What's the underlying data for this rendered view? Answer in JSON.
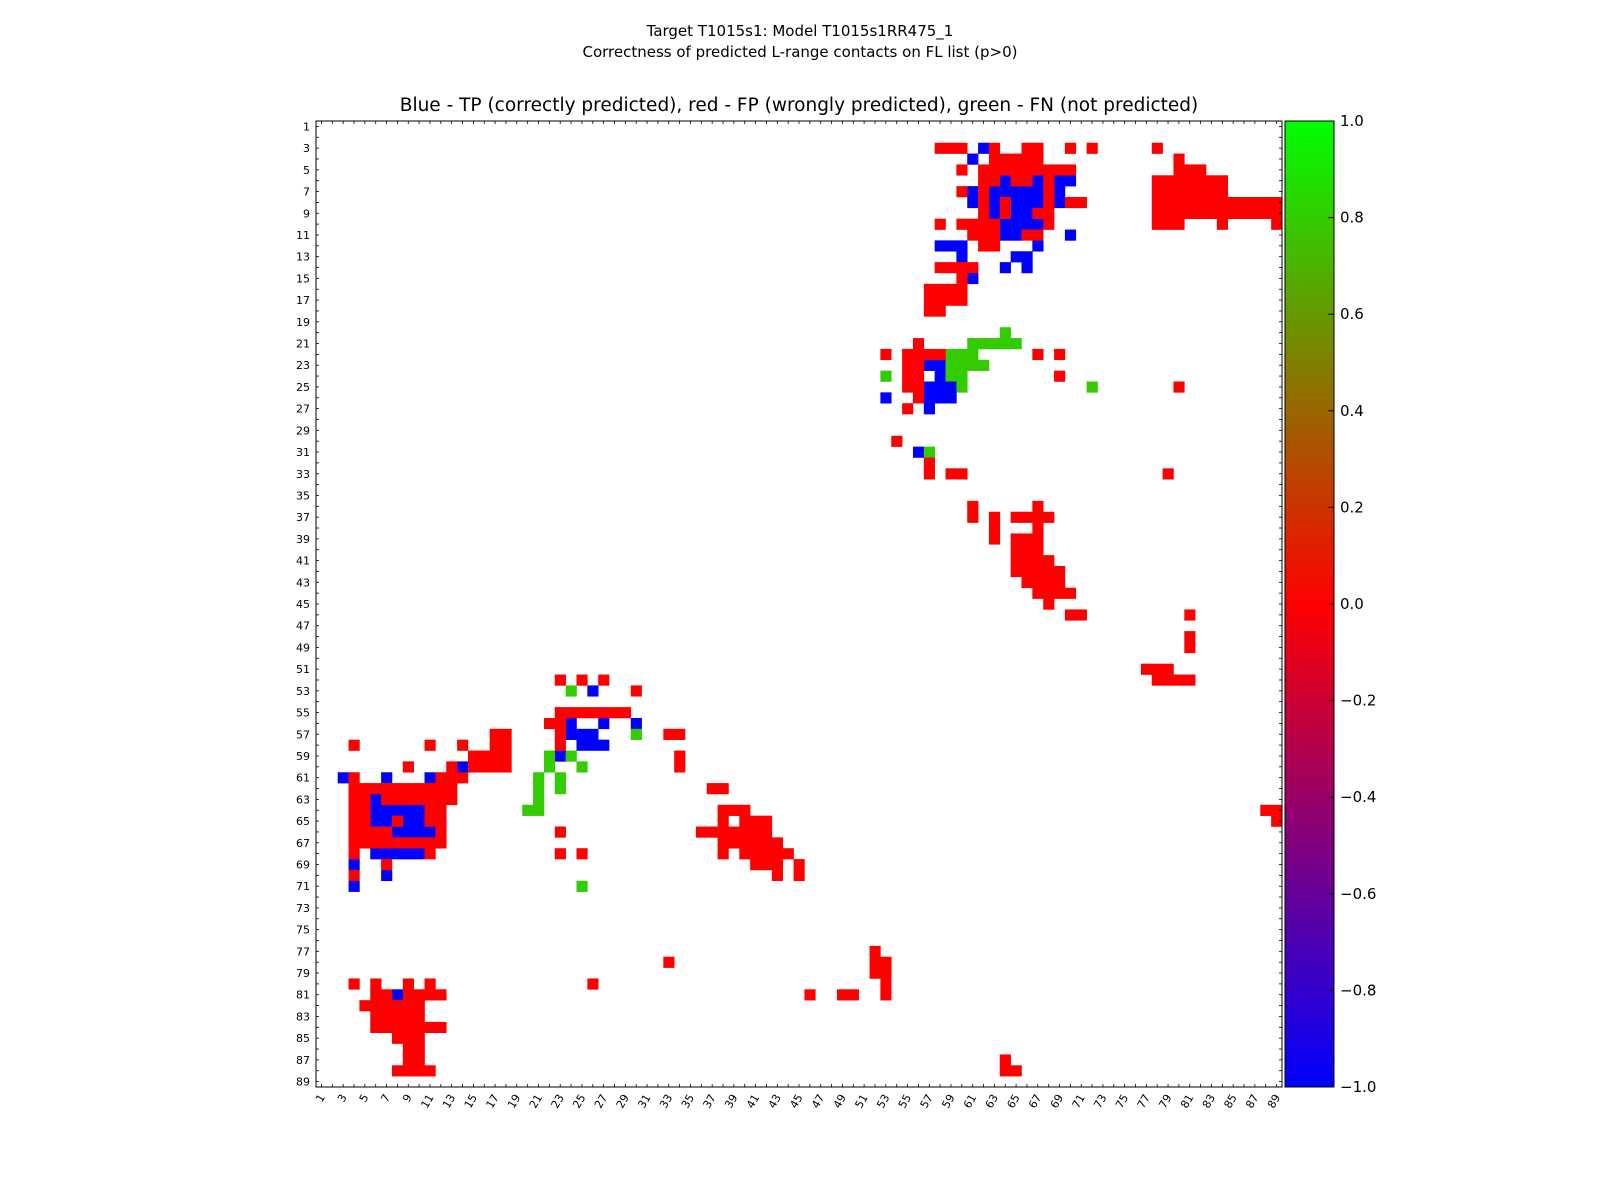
{
  "header": {
    "line1": "Target T1015s1: Model T1015s1RR475_1",
    "line2": "Correctness of predicted L-range contacts on FL list (p>0)"
  },
  "chart_data": {
    "type": "heatmap",
    "title": "Blue - TP (correctly predicted), red - FP (wrongly predicted), green - FN (not predicted)",
    "xlabel": "",
    "ylabel": "",
    "n": 89,
    "xlim": [
      1,
      89
    ],
    "ylim": [
      1,
      89
    ],
    "x_tick_labels": [
      "1",
      "3",
      "5",
      "7",
      "9",
      "11",
      "13",
      "15",
      "17",
      "19",
      "21",
      "23",
      "25",
      "27",
      "29",
      "31",
      "33",
      "35",
      "37",
      "39",
      "41",
      "43",
      "45",
      "47",
      "49",
      "51",
      "53",
      "55",
      "57",
      "59",
      "61",
      "63",
      "65",
      "67",
      "69",
      "71",
      "73",
      "75",
      "77",
      "79",
      "81",
      "83",
      "85",
      "87",
      "89"
    ],
    "y_tick_labels": [
      "1",
      "3",
      "5",
      "7",
      "9",
      "11",
      "13",
      "15",
      "17",
      "19",
      "21",
      "23",
      "25",
      "27",
      "29",
      "31",
      "33",
      "35",
      "37",
      "39",
      "41",
      "43",
      "45",
      "47",
      "49",
      "51",
      "53",
      "55",
      "57",
      "59",
      "61",
      "63",
      "65",
      "67",
      "69",
      "71",
      "73",
      "75",
      "77",
      "79",
      "81",
      "83",
      "85",
      "87",
      "89"
    ],
    "value_colors": {
      "-1": "#0000ff",
      "0": "#ff0000",
      "1": "#33cc00"
    },
    "colorbar": {
      "range": [
        -1.0,
        1.0
      ],
      "tick_labels": [
        "1.0",
        "0.8",
        "0.6",
        "0.4",
        "0.2",
        "0.0",
        "−0.2",
        "−0.4",
        "−0.6",
        "−0.8",
        "−1.0"
      ]
    },
    "cells": {
      "tp": [
        [
          61,
          4
        ],
        [
          61,
          7
        ],
        [
          61,
          8
        ],
        [
          62,
          3
        ],
        [
          64,
          11
        ],
        [
          65,
          11
        ],
        [
          70,
          11
        ],
        [
          58,
          12
        ],
        [
          59,
          12
        ],
        [
          60,
          12
        ],
        [
          60,
          13
        ],
        [
          65,
          13
        ],
        [
          66,
          13
        ],
        [
          64,
          14
        ],
        [
          66,
          14
        ],
        [
          67,
          12
        ],
        [
          64,
          6
        ],
        [
          67,
          6
        ],
        [
          63,
          7
        ],
        [
          64,
          7
        ],
        [
          65,
          7
        ],
        [
          66,
          7
        ],
        [
          67,
          7
        ],
        [
          63,
          8
        ],
        [
          65,
          8
        ],
        [
          66,
          8
        ],
        [
          67,
          8
        ],
        [
          63,
          9
        ],
        [
          65,
          9
        ],
        [
          66,
          9
        ],
        [
          64,
          10
        ],
        [
          65,
          10
        ],
        [
          66,
          10
        ],
        [
          67,
          10
        ],
        [
          69,
          6
        ],
        [
          70,
          6
        ],
        [
          69,
          7
        ],
        [
          69,
          8
        ],
        [
          61,
          15
        ],
        [
          57,
          23
        ],
        [
          58,
          23
        ],
        [
          59,
          23
        ],
        [
          58,
          24
        ],
        [
          59,
          24
        ],
        [
          57,
          25
        ],
        [
          58,
          25
        ],
        [
          59,
          25
        ],
        [
          57,
          26
        ],
        [
          58,
          26
        ],
        [
          59,
          26
        ],
        [
          57,
          27
        ],
        [
          53,
          26
        ],
        [
          56,
          31
        ],
        [
          3,
          61
        ],
        [
          4,
          69
        ],
        [
          4,
          71
        ],
        [
          7,
          61
        ],
        [
          6,
          63
        ],
        [
          11,
          61
        ],
        [
          14,
          60
        ],
        [
          6,
          64
        ],
        [
          7,
          64
        ],
        [
          8,
          64
        ],
        [
          9,
          64
        ],
        [
          10,
          64
        ],
        [
          6,
          65
        ],
        [
          7,
          65
        ],
        [
          9,
          65
        ],
        [
          10,
          65
        ],
        [
          8,
          66
        ],
        [
          9,
          66
        ],
        [
          10,
          66
        ],
        [
          11,
          66
        ],
        [
          6,
          68
        ],
        [
          7,
          68
        ],
        [
          8,
          68
        ],
        [
          9,
          68
        ],
        [
          10,
          68
        ],
        [
          7,
          70
        ],
        [
          24,
          56
        ],
        [
          24,
          57
        ],
        [
          25,
          57
        ],
        [
          26,
          57
        ],
        [
          25,
          58
        ],
        [
          26,
          58
        ],
        [
          27,
          58
        ],
        [
          23,
          59
        ],
        [
          26,
          53
        ],
        [
          27,
          56
        ],
        [
          30,
          56
        ],
        [
          8,
          81
        ]
      ],
      "fn": [
        [
          61,
          21
        ],
        [
          62,
          21
        ],
        [
          63,
          21
        ],
        [
          64,
          21
        ],
        [
          65,
          21
        ],
        [
          64,
          20
        ],
        [
          59,
          22
        ],
        [
          60,
          22
        ],
        [
          61,
          22
        ],
        [
          59,
          23
        ],
        [
          60,
          23
        ],
        [
          61,
          23
        ],
        [
          62,
          23
        ],
        [
          59,
          24
        ],
        [
          60,
          24
        ],
        [
          60,
          25
        ],
        [
          53,
          24
        ],
        [
          72,
          25
        ],
        [
          57,
          31
        ],
        [
          24,
          53
        ],
        [
          22,
          59
        ],
        [
          22,
          60
        ],
        [
          24,
          59
        ],
        [
          25,
          60
        ],
        [
          21,
          61
        ],
        [
          23,
          61
        ],
        [
          21,
          62
        ],
        [
          23,
          62
        ],
        [
          21,
          63
        ],
        [
          20,
          64
        ],
        [
          21,
          64
        ],
        [
          30,
          57
        ],
        [
          25,
          71
        ]
      ]
    },
    "fp_regions": [
      {
        "name": "top-middle",
        "x": [
          53,
          73
        ],
        "y": [
          1,
          19
        ]
      },
      {
        "name": "top-right",
        "x": [
          78,
          89
        ],
        "y": [
          1,
          20
        ]
      },
      {
        "name": "middle-right",
        "x": [
          52,
          90
        ],
        "y": [
          20,
          60
        ]
      },
      {
        "name": "left-upper",
        "x": [
          1,
          36
        ],
        "y": [
          50,
          64
        ]
      },
      {
        "name": "left-lower",
        "x": [
          1,
          50
        ],
        "y": [
          64,
          90
        ]
      },
      {
        "name": "bottom-right",
        "x": [
          50,
          90
        ],
        "y": [
          60,
          90
        ]
      }
    ]
  }
}
